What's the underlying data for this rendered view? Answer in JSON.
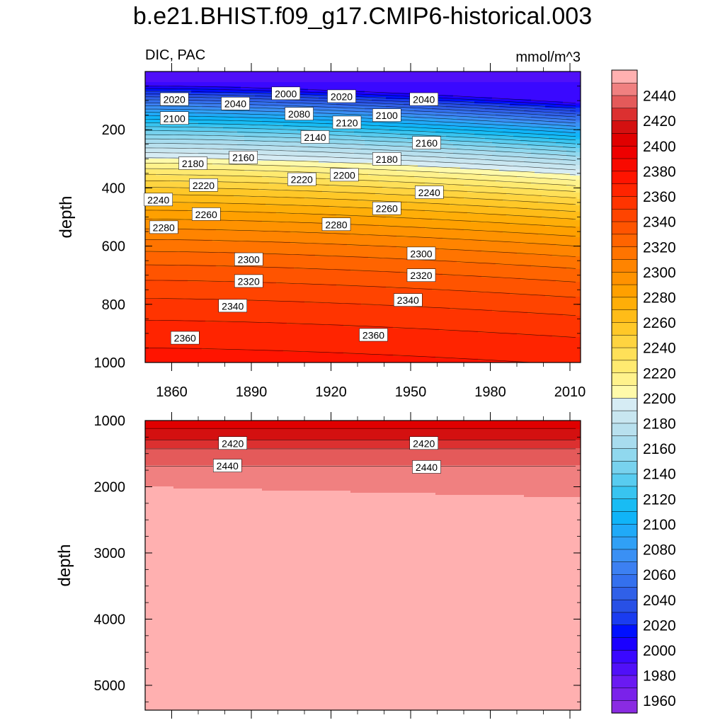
{
  "title": "b.e21.BHIST.f09_g17.CMIP6-historical.003",
  "chart_data": {
    "type": "heatmap",
    "left_label": "DIC, PAC",
    "right_label": "mmol/m^3",
    "xlim": [
      1850,
      2014
    ],
    "x_ticks": [
      1860,
      1890,
      1920,
      1950,
      1980,
      2010
    ],
    "panels": [
      {
        "name": "upper",
        "ylim": [
          0,
          1000
        ],
        "reversed": true,
        "ylabel": "depth",
        "y_ticks": [
          200,
          400,
          600,
          800,
          1000
        ],
        "contour_labels": [
          {
            "text": "2020",
            "x": 1861,
            "y": 95
          },
          {
            "text": "2040",
            "x": 1884,
            "y": 110
          },
          {
            "text": "2000",
            "x": 1903,
            "y": 75
          },
          {
            "text": "2020",
            "x": 1924,
            "y": 85
          },
          {
            "text": "2040",
            "x": 1955,
            "y": 95
          },
          {
            "text": "2100",
            "x": 1861,
            "y": 160
          },
          {
            "text": "2080",
            "x": 1908,
            "y": 145
          },
          {
            "text": "2120",
            "x": 1926,
            "y": 175
          },
          {
            "text": "2100",
            "x": 1941,
            "y": 150
          },
          {
            "text": "2140",
            "x": 1914,
            "y": 225
          },
          {
            "text": "2160",
            "x": 1887,
            "y": 295
          },
          {
            "text": "2160",
            "x": 1956,
            "y": 245
          },
          {
            "text": "2180",
            "x": 1868,
            "y": 315
          },
          {
            "text": "2180",
            "x": 1941,
            "y": 300
          },
          {
            "text": "2200",
            "x": 1925,
            "y": 355
          },
          {
            "text": "2220",
            "x": 1872,
            "y": 390
          },
          {
            "text": "2220",
            "x": 1909,
            "y": 370
          },
          {
            "text": "2240",
            "x": 1855,
            "y": 440
          },
          {
            "text": "2240",
            "x": 1957,
            "y": 415
          },
          {
            "text": "2260",
            "x": 1873,
            "y": 490
          },
          {
            "text": "2260",
            "x": 1941,
            "y": 470
          },
          {
            "text": "2280",
            "x": 1857,
            "y": 535
          },
          {
            "text": "2280",
            "x": 1922,
            "y": 525
          },
          {
            "text": "2300",
            "x": 1889,
            "y": 645
          },
          {
            "text": "2300",
            "x": 1954,
            "y": 625
          },
          {
            "text": "2320",
            "x": 1889,
            "y": 720
          },
          {
            "text": "2320",
            "x": 1954,
            "y": 700
          },
          {
            "text": "2340",
            "x": 1883,
            "y": 805
          },
          {
            "text": "2340",
            "x": 1949,
            "y": 785
          },
          {
            "text": "2360",
            "x": 1865,
            "y": 915
          },
          {
            "text": "2360",
            "x": 1936,
            "y": 905
          }
        ]
      },
      {
        "name": "lower",
        "ylim": [
          1000,
          5375
        ],
        "reversed": true,
        "ylabel": "depth",
        "y_ticks": [
          1000,
          2000,
          3000,
          4000,
          5000
        ],
        "contour_labels": [
          {
            "text": "2420",
            "x": 1883,
            "y": 1340
          },
          {
            "text": "2420",
            "x": 1955,
            "y": 1340
          },
          {
            "text": "2440",
            "x": 1881,
            "y": 1680
          },
          {
            "text": "2440",
            "x": 1956,
            "y": 1700
          }
        ]
      }
    ],
    "colorbar": {
      "levels": [
        1950,
        1960,
        1970,
        1980,
        1990,
        2000,
        2010,
        2020,
        2030,
        2040,
        2050,
        2060,
        2070,
        2080,
        2090,
        2100,
        2110,
        2120,
        2130,
        2140,
        2150,
        2160,
        2170,
        2180,
        2190,
        2200,
        2210,
        2220,
        2230,
        2240,
        2250,
        2260,
        2270,
        2280,
        2290,
        2300,
        2310,
        2320,
        2330,
        2340,
        2350,
        2360,
        2370,
        2380,
        2390,
        2400,
        2410,
        2420,
        2430,
        2440,
        2450
      ],
      "tick_labels": [
        "1960",
        "1980",
        "2000",
        "2020",
        "2040",
        "2060",
        "2080",
        "2100",
        "2120",
        "2140",
        "2160",
        "2180",
        "2200",
        "2220",
        "2240",
        "2260",
        "2280",
        "2300",
        "2320",
        "2340",
        "2360",
        "2380",
        "2400",
        "2420",
        "2440"
      ],
      "colors": [
        "#8a2be2",
        "#7a22ea",
        "#6a1af2",
        "#5010f8",
        "#3a08ff",
        "#1a00ff",
        "#0010ff",
        "#1a3cf0",
        "#2850e6",
        "#3060e8",
        "#3470ee",
        "#3c80f2",
        "#3a90f4",
        "#30a0f6",
        "#20aaf8",
        "#10b4f8",
        "#18bcf4",
        "#38c4f0",
        "#58ccf0",
        "#78d2ee",
        "#90d8ee",
        "#a8dcee",
        "#b8e0ee",
        "#c8e6f0",
        "#d6ecf4",
        "#fffaaa",
        "#fff28c",
        "#ffea70",
        "#ffe058",
        "#ffd440",
        "#ffc828",
        "#ffbc18",
        "#ffae08",
        "#ffa000",
        "#ff9200",
        "#ff8400",
        "#ff7400",
        "#ff6400",
        "#ff5400",
        "#ff4400",
        "#ff3400",
        "#ff2400",
        "#ff1400",
        "#f80a00",
        "#ee0000",
        "#e00000",
        "#d41010",
        "#dc3030",
        "#e45a5a",
        "#f08080",
        "#ffb0b0"
      ]
    }
  }
}
